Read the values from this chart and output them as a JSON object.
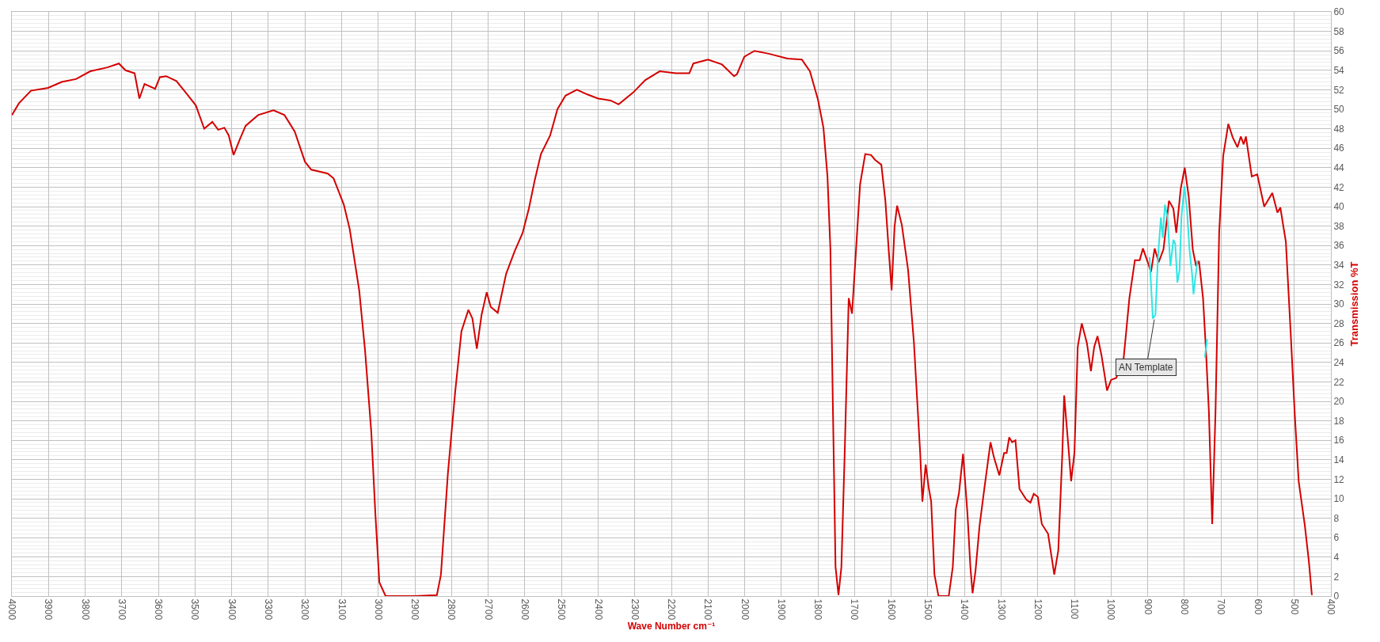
{
  "chart_data": {
    "type": "line",
    "xlabel": "Wave Number cm⁻¹",
    "ylabel": "Transmission %T",
    "xlim": [
      4000,
      400
    ],
    "xticks": [
      4000,
      3900,
      3800,
      3700,
      3600,
      3500,
      3400,
      3300,
      3200,
      3100,
      3000,
      2900,
      2800,
      2700,
      2600,
      2500,
      2400,
      2300,
      2200,
      2100,
      2000,
      1900,
      1800,
      1700,
      1600,
      1500,
      1400,
      1300,
      1200,
      1100,
      1000,
      900,
      800,
      700,
      600,
      500,
      400
    ],
    "ylim": [
      0,
      60
    ],
    "yticks": [
      0,
      2,
      4,
      6,
      8,
      10,
      12,
      14,
      16,
      18,
      20,
      22,
      24,
      26,
      28,
      30,
      32,
      34,
      36,
      38,
      40,
      42,
      44,
      46,
      48,
      50,
      52,
      54,
      56,
      58,
      60
    ],
    "grid": true,
    "marker": "none",
    "line_style": "solid",
    "annotations": [
      {
        "text": "AN Template",
        "x": 882,
        "y": 28.4
      }
    ],
    "series": [
      {
        "color": "#d40000",
        "x": [
          4000,
          3981,
          3948,
          3901,
          3864,
          3825,
          3786,
          3739,
          3708,
          3690,
          3665,
          3652,
          3638,
          3609,
          3596,
          3579,
          3551,
          3523,
          3498,
          3475,
          3453,
          3437,
          3420,
          3408,
          3395,
          3378,
          3362,
          3328,
          3286,
          3256,
          3228,
          3200,
          3183,
          3138,
          3122,
          3094,
          3078,
          3052,
          3036,
          3019,
          3008,
          2997,
          2980,
          2902,
          2840,
          2829,
          2810,
          2790,
          2773,
          2754,
          2743,
          2731,
          2718,
          2704,
          2693,
          2674,
          2651,
          2628,
          2606,
          2589,
          2573,
          2556,
          2531,
          2511,
          2489,
          2458,
          2428,
          2400,
          2366,
          2344,
          2305,
          2271,
          2232,
          2188,
          2151,
          2140,
          2100,
          2062,
          2029,
          2021,
          2001,
          1973,
          1934,
          1883,
          1844,
          1822,
          1800,
          1785,
          1774,
          1766,
          1759,
          1752,
          1744,
          1736,
          1727,
          1716,
          1707,
          1696,
          1685,
          1671,
          1655,
          1644,
          1627,
          1616,
          1607,
          1599,
          1591,
          1584,
          1571,
          1554,
          1538,
          1521,
          1515,
          1506,
          1498,
          1491,
          1482,
          1471,
          1443,
          1432,
          1424,
          1415,
          1404,
          1392,
          1384,
          1378,
          1370,
          1359,
          1346,
          1329,
          1320,
          1305,
          1292,
          1285,
          1278,
          1270,
          1261,
          1250,
          1231,
          1220,
          1211,
          1200,
          1189,
          1172,
          1155,
          1144,
          1133,
          1128,
          1117,
          1109,
          1100,
          1091,
          1080,
          1066,
          1055,
          1046,
          1037,
          1026,
          1011,
          1000,
          986,
          966,
          950,
          935,
          922,
          913,
          900,
          891,
          881,
          870,
          857,
          842,
          830,
          822,
          810,
          799,
          788,
          777,
          768,
          760,
          749,
          741,
          733,
          724,
          715,
          705,
          694,
          680,
          668,
          655,
          646,
          638,
          632,
          616,
          601,
          582,
          560,
          546,
          538,
          523,
          510,
          499,
          488,
          471,
          460,
          452
        ],
        "values": [
          49.4,
          50.6,
          51.9,
          52.2,
          52.8,
          53.1,
          53.9,
          54.3,
          54.7,
          54.0,
          53.7,
          51.1,
          52.6,
          52.1,
          53.3,
          53.4,
          52.9,
          51.6,
          50.4,
          48.0,
          48.7,
          47.9,
          48.1,
          47.3,
          45.3,
          46.9,
          48.3,
          49.4,
          49.9,
          49.4,
          47.7,
          44.6,
          43.8,
          43.4,
          42.9,
          40.2,
          37.7,
          31.4,
          25.2,
          16.8,
          8.5,
          1.4,
          0.0,
          0.0,
          0.1,
          2.2,
          12.6,
          21.0,
          27.2,
          29.4,
          28.5,
          25.4,
          28.9,
          31.2,
          29.7,
          29.1,
          33.1,
          35.4,
          37.3,
          39.8,
          42.7,
          45.4,
          47.3,
          50.0,
          51.4,
          52.0,
          51.5,
          51.1,
          50.9,
          50.5,
          51.7,
          53.0,
          53.9,
          53.7,
          53.7,
          54.7,
          55.1,
          54.6,
          53.4,
          53.6,
          55.4,
          56.0,
          55.7,
          55.2,
          55.1,
          53.9,
          51.0,
          48.1,
          43.1,
          35.6,
          18.9,
          3.0,
          0.1,
          3.0,
          14.7,
          30.6,
          29.0,
          35.6,
          42.3,
          45.4,
          45.3,
          44.8,
          44.3,
          40.6,
          35.6,
          31.4,
          37.9,
          40.1,
          38.1,
          33.5,
          26.0,
          14.7,
          9.7,
          13.5,
          11.2,
          9.7,
          2.2,
          0.0,
          0.0,
          3.0,
          8.9,
          10.6,
          14.6,
          8.5,
          3.0,
          0.3,
          2.6,
          7.2,
          11.0,
          15.8,
          14.3,
          12.4,
          14.7,
          14.7,
          16.3,
          15.8,
          16.0,
          11.0,
          9.9,
          9.6,
          10.5,
          10.2,
          7.4,
          6.4,
          2.2,
          4.7,
          14.7,
          20.6,
          15.6,
          11.8,
          14.7,
          25.6,
          28.0,
          26.0,
          23.1,
          25.6,
          26.7,
          24.7,
          21.1,
          22.2,
          22.4,
          24.3,
          30.6,
          34.5,
          34.5,
          35.7,
          34.3,
          33.3,
          35.7,
          34.3,
          35.6,
          40.6,
          39.8,
          37.3,
          41.8,
          44.0,
          41.0,
          35.6,
          33.9,
          34.4,
          30.6,
          25.2,
          18.9,
          7.4,
          18.9,
          37.3,
          45.2,
          48.5,
          47.1,
          46.1,
          47.2,
          46.4,
          47.2,
          43.1,
          43.3,
          40.0,
          41.4,
          39.4,
          39.9,
          36.4,
          27.2,
          18.9,
          11.8,
          7.2,
          3.5,
          0.1
        ]
      },
      {
        "color": "#2ee6e6",
        "x": [
          895,
          886,
          879,
          872,
          864,
          859,
          853,
          846,
          838,
          830,
          825,
          819,
          813,
          808,
          800,
          793,
          786,
          779,
          775,
          770,
          764,
          754,
          744,
          738
        ],
        "values": [
          34.8,
          28.5,
          28.9,
          34.8,
          38.9,
          36.8,
          40.2,
          38.9,
          33.9,
          36.6,
          36.2,
          32.2,
          33.5,
          38.9,
          42.1,
          39.8,
          35.6,
          33.1,
          31.0,
          32.7,
          34.5,
          null,
          24.5,
          26.4
        ]
      }
    ]
  }
}
